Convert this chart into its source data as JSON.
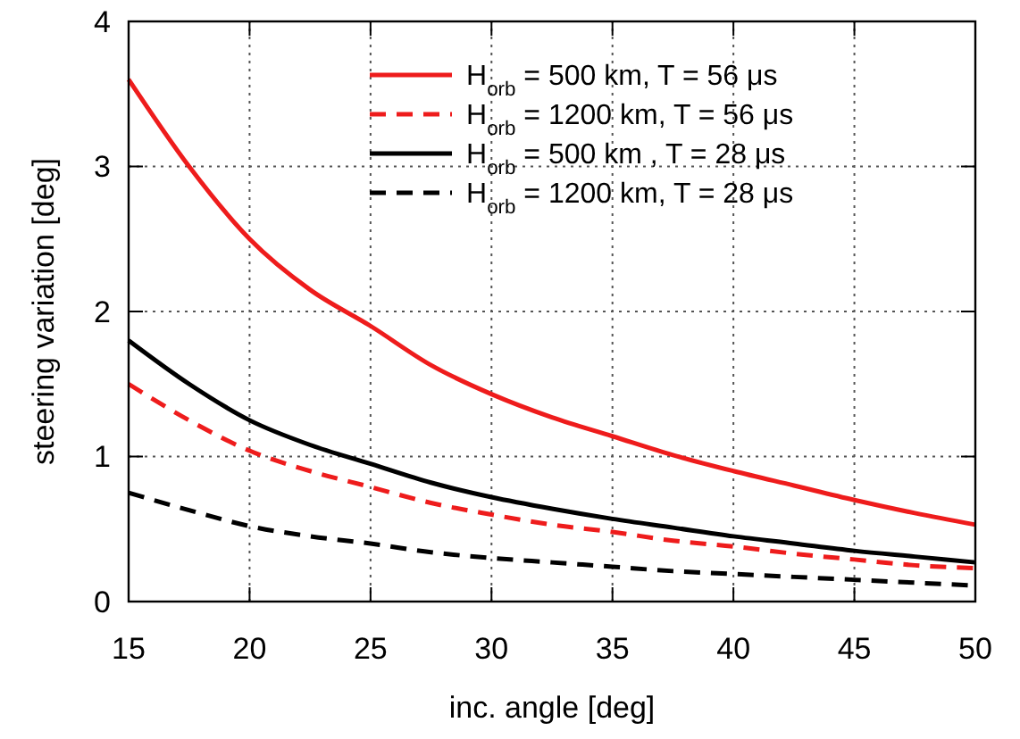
{
  "chart_data": {
    "type": "line",
    "xlabel": "inc. angle [deg]",
    "ylabel": "steering variation [deg]",
    "x": [
      15,
      17.5,
      20,
      22.5,
      25,
      27.5,
      30,
      32.5,
      35,
      37.5,
      40,
      42.5,
      45,
      47.5,
      50
    ],
    "series": [
      {
        "name": "H$_{orb}$ = 500 km, T = 56 μs",
        "color": "#ee1c1c",
        "line_style": "solid",
        "values": [
          3.6,
          3.0,
          2.5,
          2.15,
          1.9,
          1.63,
          1.43,
          1.27,
          1.14,
          1.01,
          0.9,
          0.8,
          0.7,
          0.61,
          0.53
        ]
      },
      {
        "name": "H$_{orb}$ = 1200 km, T = 56 μs",
        "color": "#ee1c1c",
        "line_style": "dashed",
        "values": [
          1.5,
          1.25,
          1.04,
          0.9,
          0.79,
          0.68,
          0.6,
          0.53,
          0.48,
          0.42,
          0.38,
          0.33,
          0.29,
          0.25,
          0.23
        ]
      },
      {
        "name": "H$_{orb}$ = 500 km , T = 28 μs",
        "color": "#000000",
        "line_style": "solid",
        "values": [
          1.8,
          1.5,
          1.25,
          1.08,
          0.95,
          0.82,
          0.72,
          0.64,
          0.57,
          0.51,
          0.45,
          0.4,
          0.35,
          0.31,
          0.27
        ]
      },
      {
        "name": "H$_{orb}$ = 1200 km, T = 28 μs",
        "color": "#000000",
        "line_style": "dashed",
        "values": [
          0.75,
          0.63,
          0.52,
          0.45,
          0.4,
          0.34,
          0.3,
          0.27,
          0.24,
          0.21,
          0.19,
          0.17,
          0.15,
          0.13,
          0.11
        ]
      }
    ],
    "xlim": [
      15,
      50
    ],
    "xticks": [
      15,
      20,
      25,
      30,
      35,
      40,
      45,
      50
    ],
    "ylim": [
      0,
      4
    ],
    "yticks": [
      0,
      1,
      2,
      3,
      4
    ],
    "grid": true,
    "legend": "top right",
    "marker": "none"
  }
}
